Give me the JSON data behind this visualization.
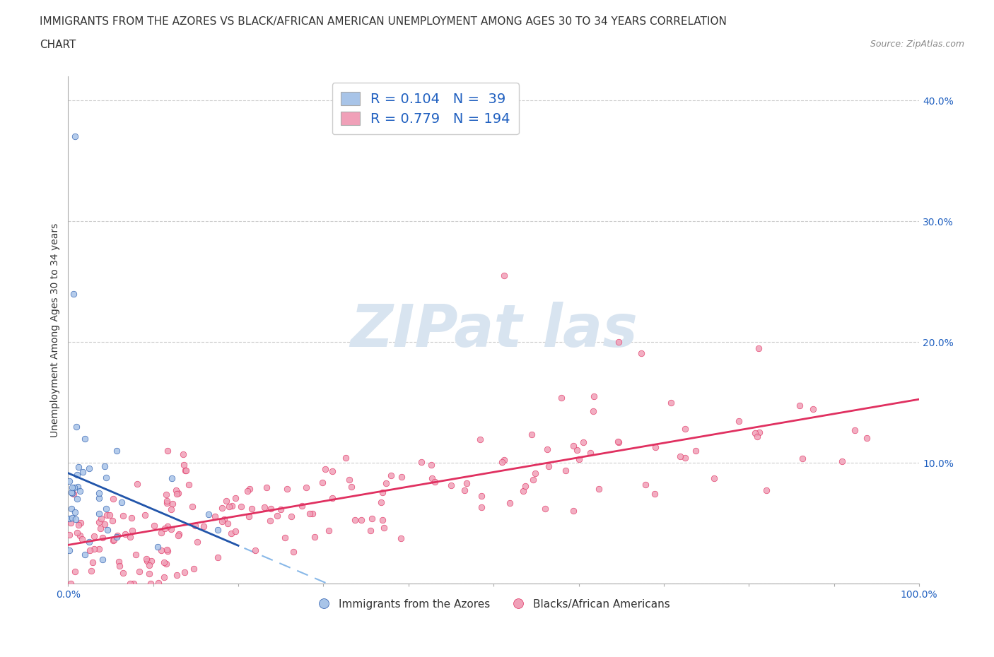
{
  "title_line1": "IMMIGRANTS FROM THE AZORES VS BLACK/AFRICAN AMERICAN UNEMPLOYMENT AMONG AGES 30 TO 34 YEARS CORRELATION",
  "title_line2": "CHART",
  "source_text": "Source: ZipAtlas.com",
  "ylabel": "Unemployment Among Ages 30 to 34 years",
  "xlim": [
    0.0,
    1.0
  ],
  "ylim": [
    0.0,
    0.42
  ],
  "azores_R": 0.104,
  "azores_N": 39,
  "black_R": 0.779,
  "black_N": 194,
  "azores_color": "#a8c4e8",
  "black_color": "#f0a0b8",
  "azores_line_color": "#2255aa",
  "black_line_color": "#e03060",
  "azores_dash_color": "#88b8e8",
  "watermark_color": "#d8e4f0",
  "legend_label_azores": "Immigrants from the Azores",
  "legend_label_black": "Blacks/African Americans",
  "legend_text_color": "#2060c0",
  "title_fontsize": 11,
  "background_color": "#ffffff",
  "grid_color": "#cccccc"
}
